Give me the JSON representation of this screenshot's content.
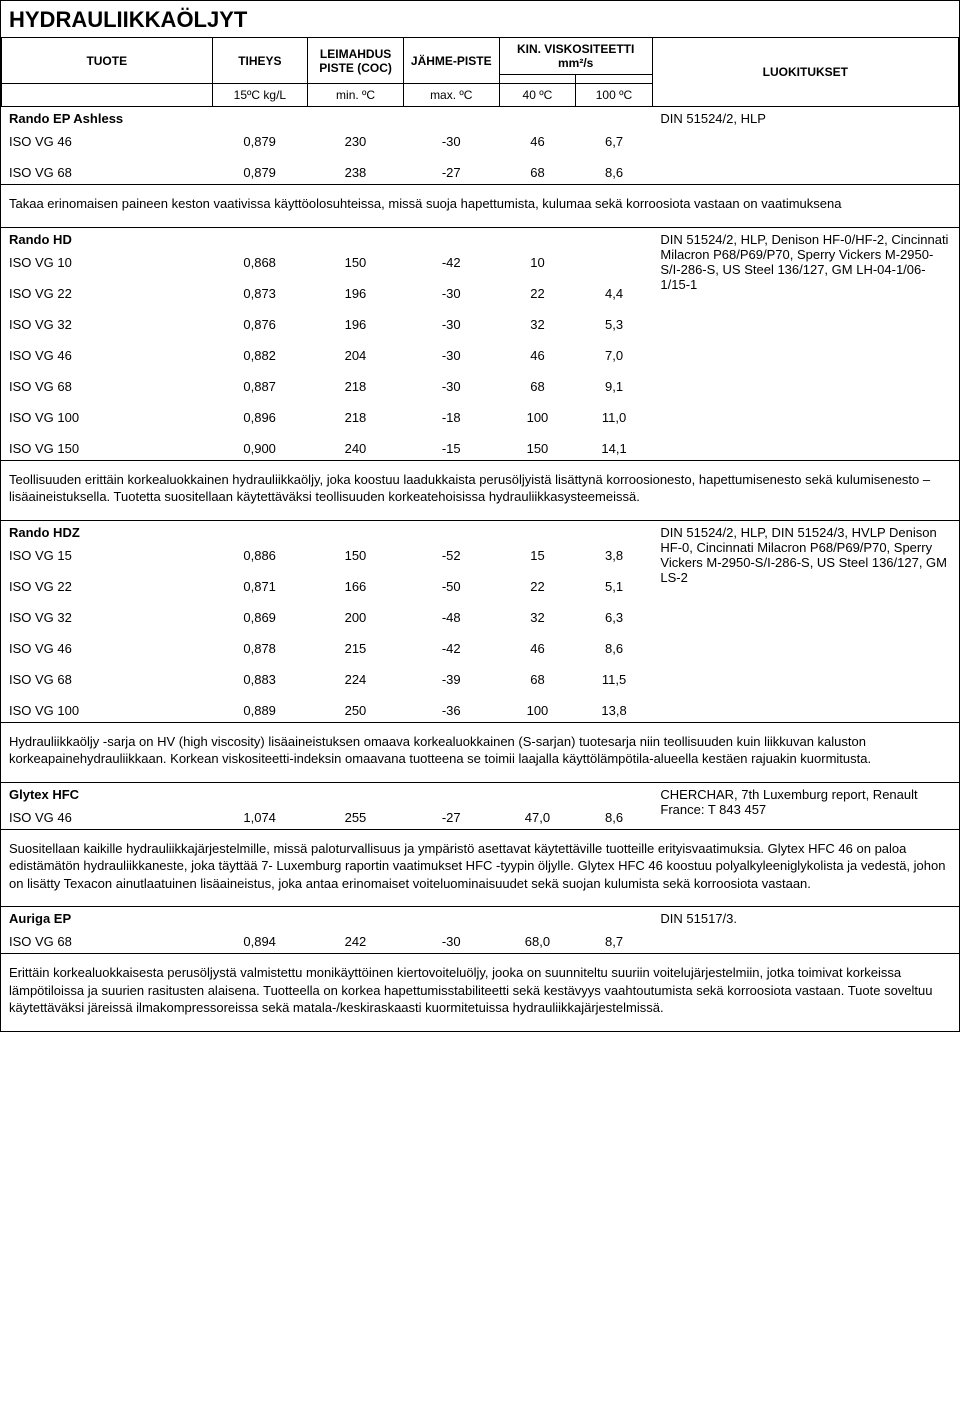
{
  "page_title": "HYDRAULIIKKAÖLJYT",
  "headers": {
    "tuote": "TUOTE",
    "tiheys": "TIHEYS",
    "leimahdus": "LEIMAHDUS PISTE (COC)",
    "jahme": "JÄHME-PISTE",
    "visk": "KIN. VISKOSITEETTI mm²/s",
    "luokitukset": "LUOKITUKSET",
    "tiheys_unit": "15ºC kg/L",
    "leimahdus_unit": "min. ºC",
    "jahme_unit": "max. ºC",
    "visk40_unit": "40 ºC",
    "visk100_unit": "100 ºC"
  },
  "sections": [
    {
      "name": "Rando EP Ashless",
      "classification": "DIN 51524/2, HLP",
      "rows": [
        {
          "label": "ISO VG 46",
          "tiheys": "0,879",
          "leimahdus": "230",
          "jahme": "-30",
          "v40": "46",
          "v100": "6,7"
        },
        {
          "label": "ISO VG 68",
          "tiheys": "0,879",
          "leimahdus": "238",
          "jahme": "-27",
          "v40": "68",
          "v100": "8,6"
        }
      ],
      "description": "Takaa erinomaisen paineen keston vaativissa käyttöolosuhteissa, missä suoja hapettumista, kulumaa sekä korroosiota vastaan on vaatimuksena"
    },
    {
      "name": "Rando HD",
      "classification": "DIN 51524/2, HLP, Denison HF-0/HF-2, Cincinnati Milacron P68/P69/P70, Sperry Vickers M-2950-S/I-286-S, US Steel 136/127, GM LH-04-1/06-1/15-1",
      "rows": [
        {
          "label": "ISO VG 10",
          "tiheys": "0,868",
          "leimahdus": "150",
          "jahme": "-42",
          "v40": "10",
          "v100": ""
        },
        {
          "label": "ISO VG 22",
          "tiheys": "0,873",
          "leimahdus": "196",
          "jahme": "-30",
          "v40": "22",
          "v100": "4,4"
        },
        {
          "label": "ISO VG 32",
          "tiheys": "0,876",
          "leimahdus": "196",
          "jahme": "-30",
          "v40": "32",
          "v100": "5,3"
        },
        {
          "label": "ISO VG 46",
          "tiheys": "0,882",
          "leimahdus": "204",
          "jahme": "-30",
          "v40": "46",
          "v100": "7,0"
        },
        {
          "label": "ISO VG 68",
          "tiheys": "0,887",
          "leimahdus": "218",
          "jahme": "-30",
          "v40": "68",
          "v100": "9,1"
        },
        {
          "label": "ISO VG 100",
          "tiheys": "0,896",
          "leimahdus": "218",
          "jahme": "-18",
          "v40": "100",
          "v100": "11,0"
        },
        {
          "label": "ISO VG 150",
          "tiheys": "0,900",
          "leimahdus": "240",
          "jahme": "-15",
          "v40": "150",
          "v100": "14,1"
        }
      ],
      "description": "Teollisuuden erittäin korkealuokkainen hydrauliikkaöljy, joka koostuu laadukkaista perusöljyistä lisättynä korroosionesto, hapettumisenesto sekä kulumisenesto – lisäaineistuksella. Tuotetta suositellaan käytettäväksi teollisuuden korkeatehoisissa hydrauliikkasysteemeissä."
    },
    {
      "name": "Rando HDZ",
      "classification": "DIN 51524/2, HLP, DIN 51524/3, HVLP Denison HF-0, Cincinnati Milacron P68/P69/P70, Sperry Vickers M-2950-S/I-286-S, US Steel 136/127, GM LS-2",
      "rows": [
        {
          "label": "ISO VG 15",
          "tiheys": "0,886",
          "leimahdus": "150",
          "jahme": "-52",
          "v40": "15",
          "v100": "3,8"
        },
        {
          "label": "ISO VG 22",
          "tiheys": "0,871",
          "leimahdus": "166",
          "jahme": "-50",
          "v40": "22",
          "v100": "5,1"
        },
        {
          "label": "ISO VG 32",
          "tiheys": "0,869",
          "leimahdus": "200",
          "jahme": "-48",
          "v40": "32",
          "v100": "6,3"
        },
        {
          "label": "ISO VG 46",
          "tiheys": "0,878",
          "leimahdus": "215",
          "jahme": "-42",
          "v40": "46",
          "v100": "8,6"
        },
        {
          "label": "ISO VG 68",
          "tiheys": "0,883",
          "leimahdus": "224",
          "jahme": "-39",
          "v40": "68",
          "v100": "11,5"
        },
        {
          "label": "ISO VG 100",
          "tiheys": "0,889",
          "leimahdus": "250",
          "jahme": "-36",
          "v40": "100",
          "v100": "13,8"
        }
      ],
      "description": "Hydrauliikkaöljy -sarja on HV (high viscosity) lisäaineistuksen omaava korkealuokkainen (S-sarjan) tuotesarja niin teollisuuden kuin liikkuvan kaluston korkeapainehydrauliikkaan. Korkean viskositeetti-indeksin omaavana tuotteena se toimii laajalla käyttölämpötila-alueella kestäen rajuakin kuormitusta."
    },
    {
      "name": "Glytex HFC",
      "classification": "CHERCHAR, 7th Luxemburg report, Renault France: T 843 457",
      "rows": [
        {
          "label": "ISO VG 46",
          "tiheys": "1,074",
          "leimahdus": "255",
          "jahme": "-27",
          "v40": "47,0",
          "v100": "8,6"
        }
      ],
      "description": "Suositellaan kaikille hydrauliikkajärjestelmille, missä paloturvallisuus ja ympäristö asettavat käytettäville tuotteille erityisvaatimuksia. Glytex HFC 46 on paloa edistämätön hydrauliikkaneste, joka täyttää 7- Luxemburg raportin vaatimukset HFC -tyypin öljylle. Glytex HFC 46 koostuu polyalkyleeniglykolista ja vedestä, johon on lisätty Texacon ainutlaatuinen lisäaineistus, joka antaa erinomaiset voiteluominaisuudet sekä suojan kulumista sekä korroosiota vastaan."
    },
    {
      "name": "Auriga EP",
      "classification": "DIN 51517/3.",
      "rows": [
        {
          "label": "ISO VG 68",
          "tiheys": "0,894",
          "leimahdus": "242",
          "jahme": "-30",
          "v40": "68,0",
          "v100": "8,7"
        }
      ],
      "description": "Erittäin korkealuokkaisesta perusöljystä valmistettu monikäyttöinen kiertovoiteluöljy, jooka on suunniteltu suuriin voitelujärjestelmiin, jotka toimivat korkeissa lämpötiloissa ja suurien rasitusten alaisena. Tuotteella on korkea hapettumisstabiliteetti sekä kestävyys vaahtoutumista sekä korroosiota vastaan. Tuote soveltuu käytettäväksi  järeissä ilmakompressoreissa sekä matala-/keskiraskaasti kuormitetuissa hydrauliikkajärjestelmissä."
    }
  ],
  "colors": {
    "border": "#000000",
    "background": "#ffffff",
    "text": "#000000"
  }
}
